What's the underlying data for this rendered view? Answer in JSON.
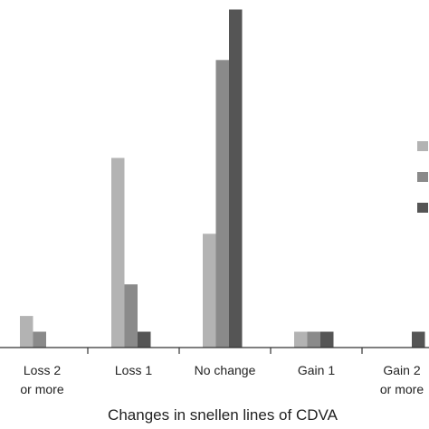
{
  "chart_data": {
    "type": "bar",
    "categories": [
      [
        "Loss 2",
        "or more"
      ],
      [
        "Loss 1"
      ],
      [
        "No change"
      ],
      [
        "Gain 1"
      ],
      [
        "Gain 2",
        "or more"
      ]
    ],
    "xlabel": "Changes in snellen lines of CDVA",
    "ylim": [
      0,
      22
    ],
    "series": [
      {
        "color": "#b3b3b3",
        "values": [
          2,
          12,
          7.2,
          1,
          0
        ]
      },
      {
        "color": "#8a8a8a",
        "values": [
          1,
          4,
          18.2,
          1,
          0
        ]
      },
      {
        "color": "#555555",
        "values": [
          0,
          1,
          21.4,
          1,
          1
        ]
      }
    ],
    "grid": false,
    "legend_position": "right"
  }
}
